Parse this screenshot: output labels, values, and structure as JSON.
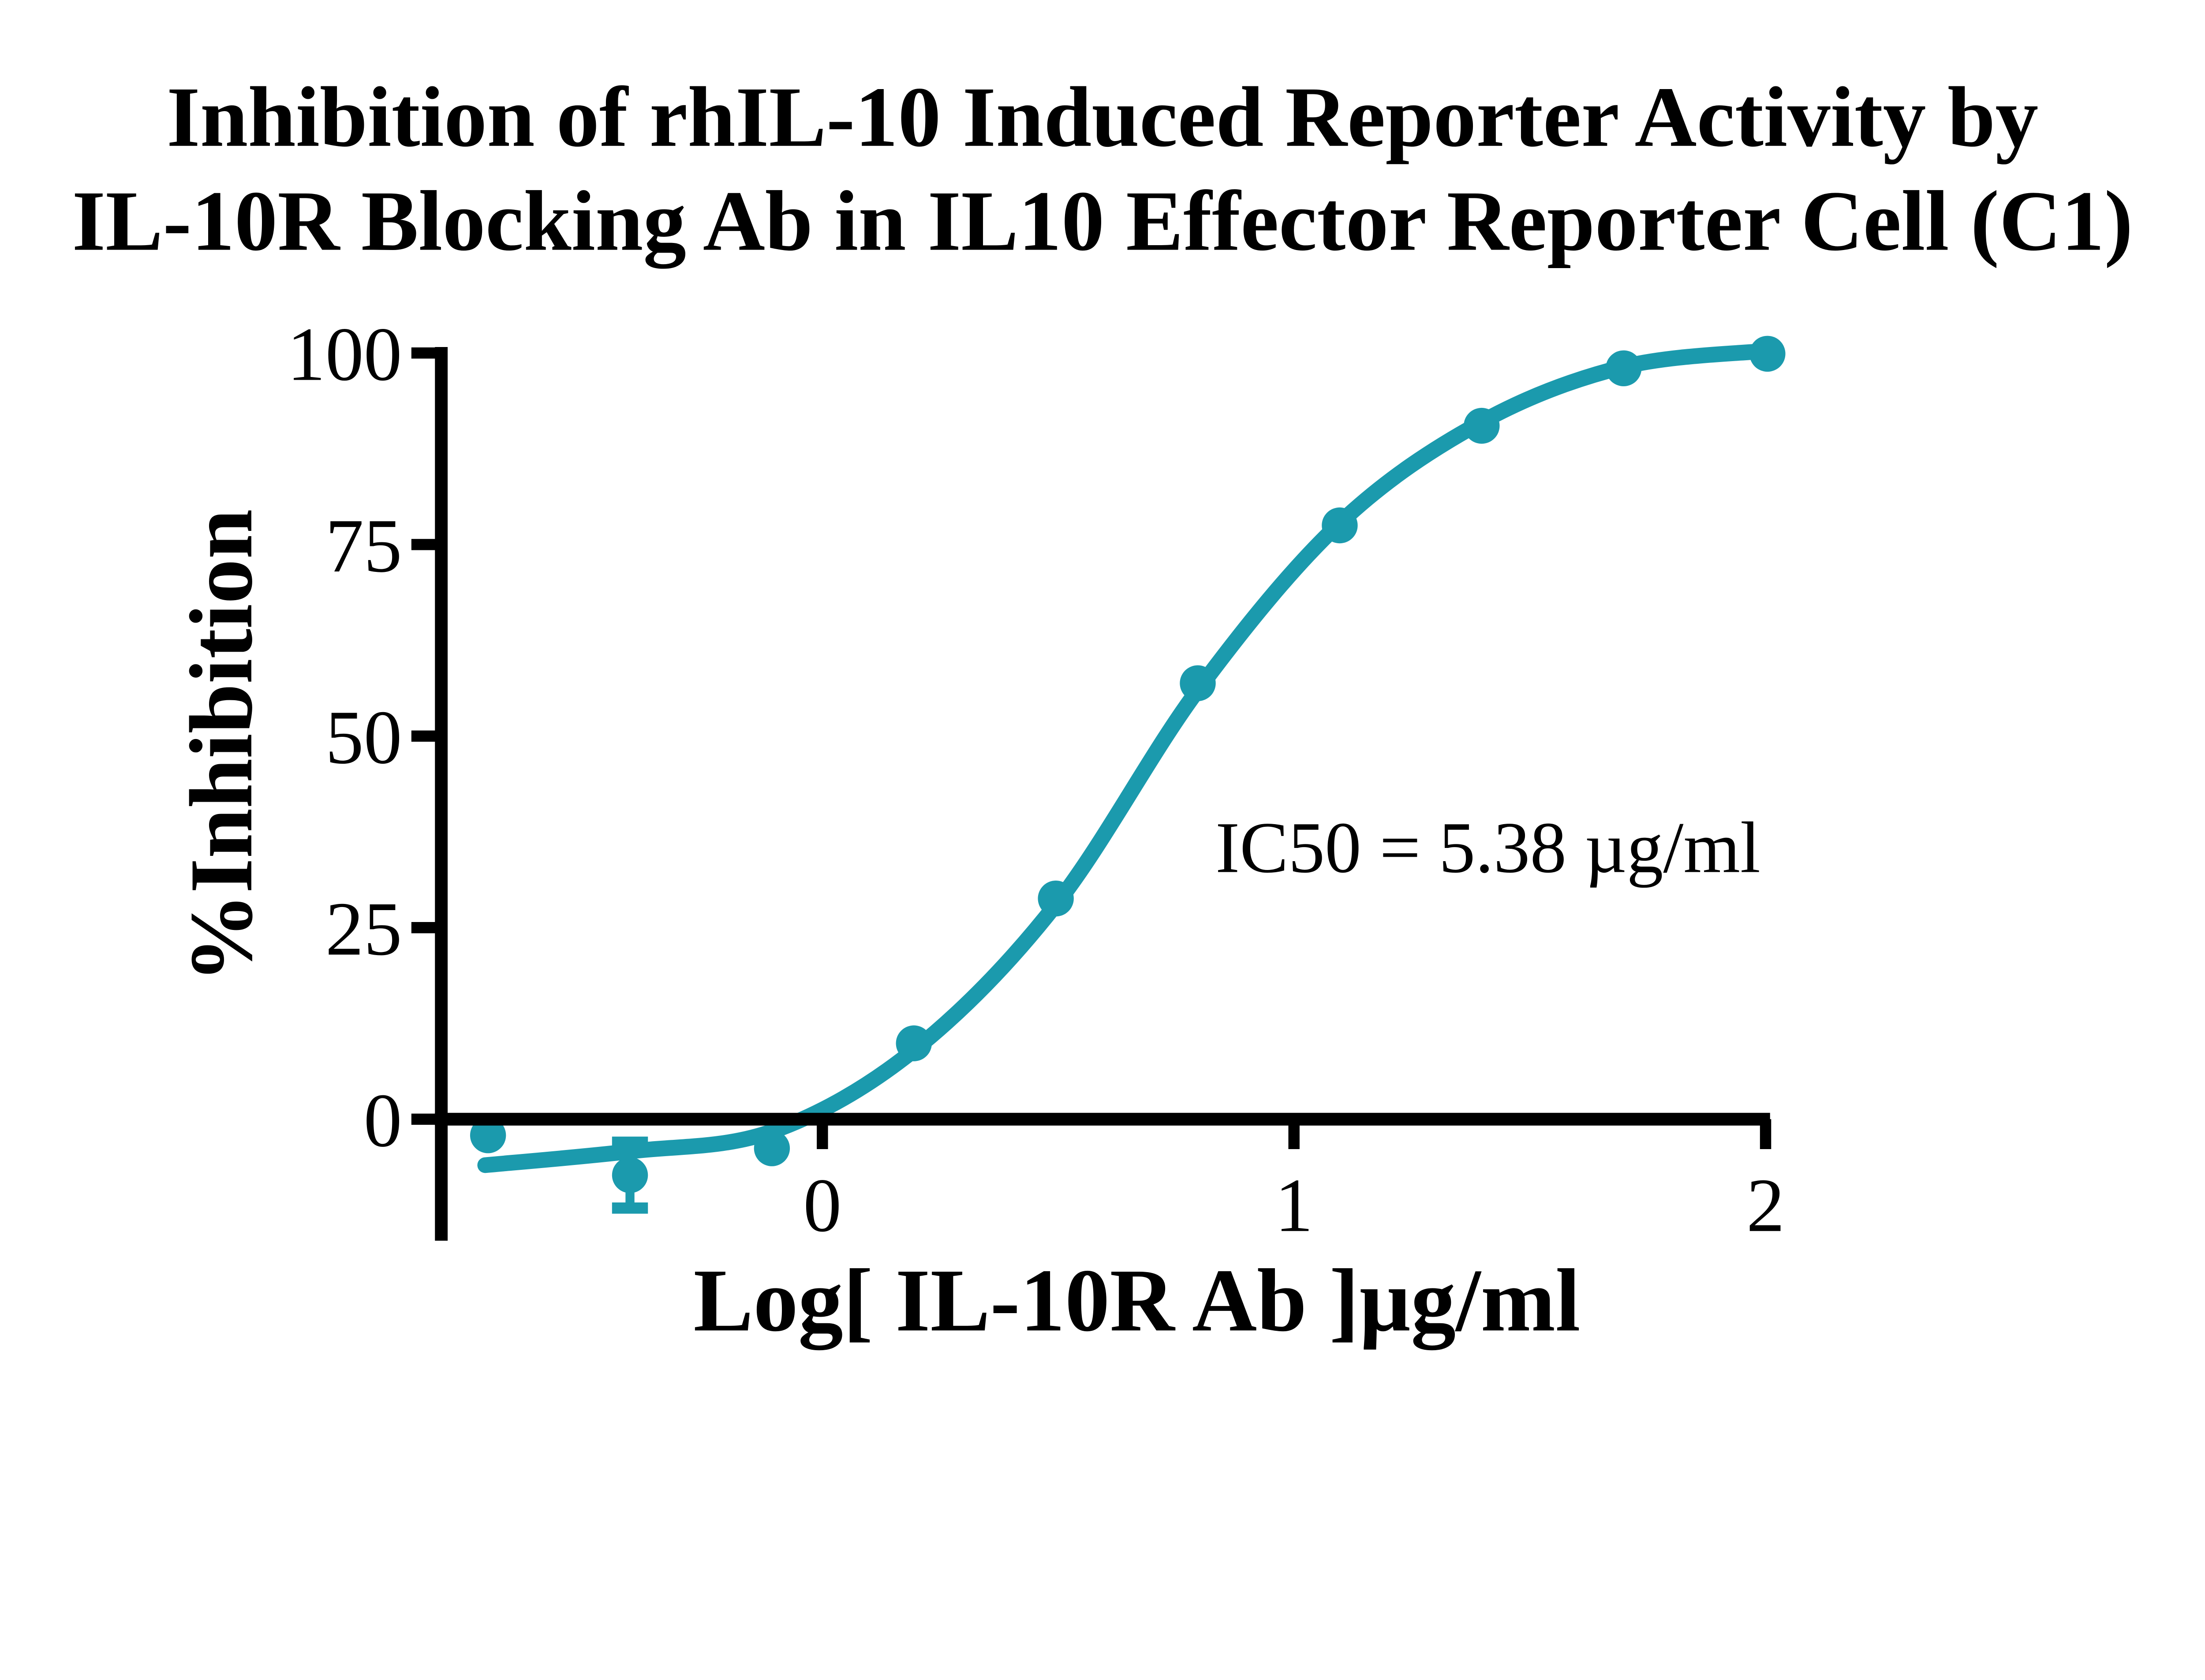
{
  "title": {
    "line1": "Inhibition of rhIL-10 Induced Reporter Activity by",
    "line2": "IL-10R Blocking Ab in IL10 Effector Reporter Cell (C1)"
  },
  "chart_data": {
    "type": "scatter",
    "subtype": "sigmoidal-dose-response-fit",
    "title": "Inhibition of rhIL-10 Induced Reporter Activity by IL-10R Blocking Ab in IL10 Effector Reporter Cell (C1)",
    "xlabel": "Log[ IL-10R Ab ]µg/ml",
    "ylabel": "%Inhibition",
    "annotation": "IC50 = 5.38 µg/ml",
    "ic50_ug_per_ml": 5.38,
    "x_ticks": [
      0,
      1,
      2
    ],
    "y_ticks": [
      0,
      25,
      50,
      75,
      100
    ],
    "xlim": [
      -0.85,
      2.1
    ],
    "ylim": [
      0,
      100
    ],
    "grid": false,
    "legend": "none",
    "series": [
      {
        "name": "IL-10R Ab",
        "x": [
          -0.709,
          -0.408,
          -0.107,
          0.194,
          0.495,
          0.796,
          1.097,
          1.398,
          1.699,
          2.004
        ],
        "y": [
          -2.1,
          -7.3,
          -3.8,
          9.9,
          28.8,
          56.9,
          77.5,
          90.5,
          98.0,
          99.9
        ]
      }
    ],
    "error_bars": [
      {
        "point_index": 1,
        "x": -0.408,
        "y": -7.3,
        "plus": 4.3,
        "minus": 4.3
      }
    ],
    "fit_curve_trace": [
      [
        -0.715,
        -6.0
      ],
      [
        -0.408,
        -4.2
      ],
      [
        -0.107,
        -1.6
      ],
      [
        0.194,
        9.0
      ],
      [
        0.495,
        28.0
      ],
      [
        0.796,
        56.0
      ],
      [
        1.097,
        77.8
      ],
      [
        1.398,
        91.0
      ],
      [
        1.699,
        98.2
      ],
      [
        2.004,
        100.3
      ]
    ],
    "colors": {
      "series": "#1B9AAD",
      "axis": "#000000",
      "text": "#000000",
      "background": "#ffffff"
    }
  }
}
